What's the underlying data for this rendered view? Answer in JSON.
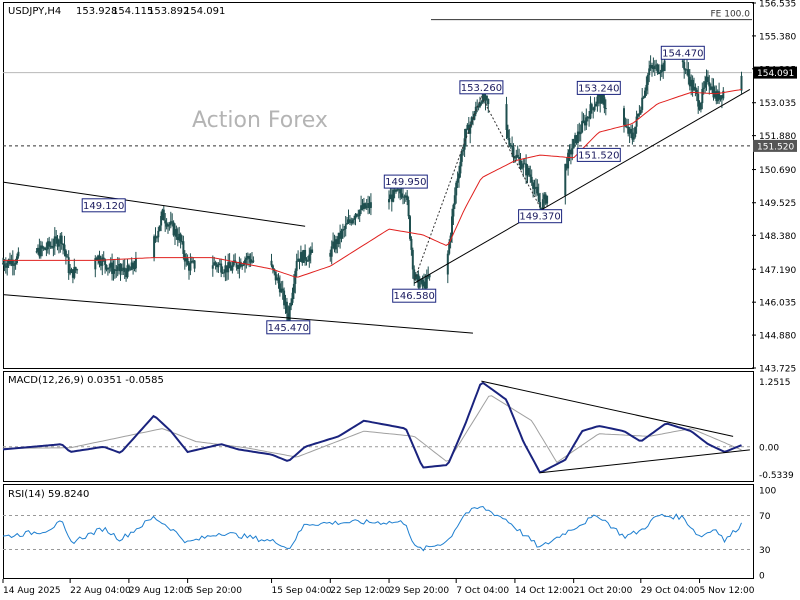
{
  "chart_data": {
    "type": "candlestick",
    "symbol_label": "USDJPY,H4",
    "ohlc_readout": [
      "153.928",
      "154.115",
      "153.892",
      "154.091"
    ],
    "watermark": "Action Forex",
    "colors": {
      "candle": "#1f4f4f",
      "ma": "#e0201e",
      "macd": "#1a237e",
      "signal": "#a0a0a0",
      "rsi": "#1e7fd0",
      "label_border": "#1a237e",
      "price_badge_bg": "#000000",
      "level_badge_bg": "#555555"
    },
    "main": {
      "ylim": [
        143.725,
        156.535
      ],
      "y_ticks": [
        "156.535",
        "155.380",
        "154.225",
        "153.035",
        "151.880",
        "150.690",
        "149.525",
        "148.380",
        "147.190",
        "146.035",
        "144.880",
        "143.725"
      ],
      "current_price": "154.091",
      "support_level": "151.520",
      "fe_level": {
        "label": "FE 100.0",
        "value": 155.95
      },
      "swing_labels": [
        {
          "text": "149.120",
          "date": "2025-08-26",
          "price": 149.12,
          "pos": "above"
        },
        {
          "text": "145.470",
          "date": "2025-09-17",
          "price": 145.47,
          "pos": "below"
        },
        {
          "text": "149.950",
          "date": "2025-10-01",
          "price": 149.95,
          "pos": "above"
        },
        {
          "text": "146.580",
          "date": "2025-10-02",
          "price": 146.58,
          "pos": "below"
        },
        {
          "text": "153.260",
          "date": "2025-10-10",
          "price": 153.26,
          "pos": "above"
        },
        {
          "text": "149.370",
          "date": "2025-10-17",
          "price": 149.37,
          "pos": "below"
        },
        {
          "text": "153.240",
          "date": "2025-10-24",
          "price": 153.24,
          "pos": "above"
        },
        {
          "text": "151.520",
          "date": "2025-10-24",
          "price": 151.52,
          "pos": "below"
        },
        {
          "text": "154.470",
          "date": "2025-11-03",
          "price": 154.47,
          "pos": "above"
        }
      ],
      "path": [
        [
          "2025-08-14",
          147.4
        ],
        [
          "2025-08-19",
          147.9
        ],
        [
          "2025-08-21",
          148.3
        ],
        [
          "2025-08-22",
          147.0
        ],
        [
          "2025-08-25",
          147.7
        ],
        [
          "2025-08-27",
          147.2
        ],
        [
          "2025-08-29",
          147.1
        ],
        [
          "2025-09-01",
          148.2
        ],
        [
          "2025-09-02",
          149.1
        ],
        [
          "2025-09-04",
          148.3
        ],
        [
          "2025-09-05",
          147.3
        ],
        [
          "2025-09-08",
          147.4
        ],
        [
          "2025-09-10",
          147.2
        ],
        [
          "2025-09-12",
          147.6
        ],
        [
          "2025-09-15",
          147.2
        ],
        [
          "2025-09-16",
          146.6
        ],
        [
          "2025-09-17",
          145.5
        ],
        [
          "2025-09-18",
          147.6
        ],
        [
          "2025-09-22",
          147.8
        ],
        [
          "2025-09-25",
          149.2
        ],
        [
          "2025-10-01",
          149.95
        ],
        [
          "2025-10-02",
          146.9
        ],
        [
          "2025-10-03",
          146.58
        ],
        [
          "2025-10-06",
          147.7
        ],
        [
          "2025-10-07",
          150.2
        ],
        [
          "2025-10-08",
          151.8
        ],
        [
          "2025-10-10",
          153.26
        ],
        [
          "2025-10-13",
          152.0
        ],
        [
          "2025-10-14",
          151.2
        ],
        [
          "2025-10-16",
          150.4
        ],
        [
          "2025-10-17",
          149.37
        ],
        [
          "2025-10-20",
          150.8
        ],
        [
          "2025-10-21",
          151.6
        ],
        [
          "2025-10-23",
          152.8
        ],
        [
          "2025-10-24",
          153.24
        ],
        [
          "2025-10-27",
          152.2
        ],
        [
          "2025-10-28",
          151.8
        ],
        [
          "2025-10-29",
          153.0
        ],
        [
          "2025-10-30",
          154.2
        ],
        [
          "2025-11-03",
          154.47
        ],
        [
          "2025-11-04",
          153.7
        ],
        [
          "2025-11-05",
          153.0
        ],
        [
          "2025-11-06",
          153.9
        ],
        [
          "2025-11-07",
          153.2
        ],
        [
          "2025-11-10",
          154.09
        ]
      ],
      "ma_path": [
        [
          "2025-08-14",
          147.5
        ],
        [
          "2025-08-25",
          147.5
        ],
        [
          "2025-09-01",
          147.6
        ],
        [
          "2025-09-08",
          147.6
        ],
        [
          "2025-09-15",
          147.2
        ],
        [
          "2025-09-18",
          146.9
        ],
        [
          "2025-09-22",
          147.3
        ],
        [
          "2025-09-29",
          148.6
        ],
        [
          "2025-10-03",
          148.4
        ],
        [
          "2025-10-06",
          148.0
        ],
        [
          "2025-10-08",
          149.3
        ],
        [
          "2025-10-10",
          150.4
        ],
        [
          "2025-10-14",
          151.0
        ],
        [
          "2025-10-17",
          151.2
        ],
        [
          "2025-10-21",
          151.1
        ],
        [
          "2025-10-24",
          152.0
        ],
        [
          "2025-10-28",
          152.3
        ],
        [
          "2025-10-31",
          153.0
        ],
        [
          "2025-11-04",
          153.4
        ],
        [
          "2025-11-07",
          153.35
        ],
        [
          "2025-11-10",
          153.5
        ]
      ],
      "trendlines": [
        {
          "from": [
            "2025-08-14",
            150.25
          ],
          "to": [
            "2025-09-19",
            148.7
          ]
        },
        {
          "from": [
            "2025-08-14",
            146.3
          ],
          "to": [
            "2025-10-09",
            144.95
          ]
        },
        {
          "from": [
            "2025-10-02",
            146.7
          ],
          "to": [
            "2025-11-11",
            153.5
          ]
        }
      ],
      "dotted_lines": [
        [
          [
            "2025-10-02",
            146.8
          ],
          [
            "2025-10-10",
            153.26
          ]
        ],
        [
          [
            "2025-10-10",
            153.26
          ],
          [
            "2025-10-17",
            149.37
          ]
        ]
      ]
    },
    "macd": {
      "label": "MACD(12,26,9) 0.0351 -0.0585",
      "ylim": [
        -0.6,
        1.32
      ],
      "y_ticks": [
        "1.2515",
        "0.00",
        "-0.5339"
      ],
      "path": [
        [
          "2025-08-14",
          -0.05
        ],
        [
          "2025-08-19",
          0.02
        ],
        [
          "2025-08-21",
          0.05
        ],
        [
          "2025-08-22",
          -0.1
        ],
        [
          "2025-08-26",
          0.0
        ],
        [
          "2025-08-28",
          -0.12
        ],
        [
          "2025-09-01",
          0.6
        ],
        [
          "2025-09-03",
          0.3
        ],
        [
          "2025-09-05",
          -0.1
        ],
        [
          "2025-09-09",
          0.05
        ],
        [
          "2025-09-11",
          -0.05
        ],
        [
          "2025-09-15",
          -0.15
        ],
        [
          "2025-09-17",
          -0.28
        ],
        [
          "2025-09-19",
          0.0
        ],
        [
          "2025-09-23",
          0.2
        ],
        [
          "2025-09-26",
          0.5
        ],
        [
          "2025-10-01",
          0.35
        ],
        [
          "2025-10-03",
          -0.4
        ],
        [
          "2025-10-06",
          -0.35
        ],
        [
          "2025-10-08",
          0.4
        ],
        [
          "2025-10-10",
          1.25
        ],
        [
          "2025-10-13",
          0.9
        ],
        [
          "2025-10-15",
          0.1
        ],
        [
          "2025-10-17",
          -0.5
        ],
        [
          "2025-10-20",
          -0.25
        ],
        [
          "2025-10-22",
          0.3
        ],
        [
          "2025-10-24",
          0.4
        ],
        [
          "2025-10-27",
          0.3
        ],
        [
          "2025-10-29",
          0.1
        ],
        [
          "2025-11-01",
          0.45
        ],
        [
          "2025-11-04",
          0.3
        ],
        [
          "2025-11-06",
          0.05
        ],
        [
          "2025-11-08",
          -0.1
        ],
        [
          "2025-11-10",
          0.03
        ]
      ],
      "signal_path": [
        [
          "2025-08-14",
          -0.03
        ],
        [
          "2025-08-22",
          -0.02
        ],
        [
          "2025-09-02",
          0.35
        ],
        [
          "2025-09-06",
          0.1
        ],
        [
          "2025-09-12",
          -0.02
        ],
        [
          "2025-09-18",
          -0.2
        ],
        [
          "2025-09-26",
          0.3
        ],
        [
          "2025-10-02",
          0.2
        ],
        [
          "2025-10-06",
          -0.3
        ],
        [
          "2025-10-11",
          1.0
        ],
        [
          "2025-10-16",
          0.5
        ],
        [
          "2025-10-19",
          -0.3
        ],
        [
          "2025-10-24",
          0.25
        ],
        [
          "2025-10-30",
          0.2
        ],
        [
          "2025-11-04",
          0.35
        ],
        [
          "2025-11-10",
          -0.06
        ]
      ],
      "trendlines": [
        {
          "from": [
            "2025-10-10",
            1.26
          ],
          "to": [
            "2025-11-09",
            0.2
          ]
        },
        {
          "from": [
            "2025-10-17",
            -0.5
          ],
          "to": [
            "2025-11-11",
            -0.06
          ]
        }
      ]
    },
    "rsi": {
      "label": "RSI(14) 59.8240",
      "ylim": [
        0,
        100
      ],
      "y_ticks": [
        "100",
        "70",
        "30",
        "0"
      ],
      "path": [
        [
          "2025-08-14",
          45
        ],
        [
          "2025-08-19",
          52
        ],
        [
          "2025-08-21",
          62
        ],
        [
          "2025-08-22",
          38
        ],
        [
          "2025-08-26",
          55
        ],
        [
          "2025-08-28",
          42
        ],
        [
          "2025-09-01",
          68
        ],
        [
          "2025-09-03",
          55
        ],
        [
          "2025-09-05",
          38
        ],
        [
          "2025-09-09",
          50
        ],
        [
          "2025-09-12",
          45
        ],
        [
          "2025-09-16",
          38
        ],
        [
          "2025-09-17",
          30
        ],
        [
          "2025-09-19",
          60
        ],
        [
          "2025-09-24",
          62
        ],
        [
          "2025-10-01",
          62
        ],
        [
          "2025-10-02",
          33
        ],
        [
          "2025-10-03",
          30
        ],
        [
          "2025-10-06",
          40
        ],
        [
          "2025-10-08",
          72
        ],
        [
          "2025-10-10",
          80
        ],
        [
          "2025-10-13",
          65
        ],
        [
          "2025-10-15",
          48
        ],
        [
          "2025-10-17",
          32
        ],
        [
          "2025-10-20",
          50
        ],
        [
          "2025-10-23",
          66
        ],
        [
          "2025-10-24",
          70
        ],
        [
          "2025-10-27",
          45
        ],
        [
          "2025-10-29",
          52
        ],
        [
          "2025-10-31",
          70
        ],
        [
          "2025-11-03",
          68
        ],
        [
          "2025-11-05",
          45
        ],
        [
          "2025-11-07",
          55
        ],
        [
          "2025-11-08",
          40
        ],
        [
          "2025-11-10",
          60
        ]
      ]
    },
    "x_labels": [
      {
        "text": "14 Aug 2025",
        "date": "2025-08-14"
      },
      {
        "text": "22 Aug 04:00",
        "date": "2025-08-22"
      },
      {
        "text": "29 Aug 12:00",
        "date": "2025-08-29"
      },
      {
        "text": "5 Sep 20:00",
        "date": "2025-09-05"
      },
      {
        "text": "15 Sep 04:00",
        "date": "2025-09-15"
      },
      {
        "text": "22 Sep 12:00",
        "date": "2025-09-22"
      },
      {
        "text": "29 Sep 20:00",
        "date": "2025-09-29"
      },
      {
        "text": "7 Oct 04:00",
        "date": "2025-10-07"
      },
      {
        "text": "14 Oct 12:00",
        "date": "2025-10-14"
      },
      {
        "text": "21 Oct 20:00",
        "date": "2025-10-21"
      },
      {
        "text": "29 Oct 04:00",
        "date": "2025-10-29"
      },
      {
        "text": "5 Nov 12:00",
        "date": "2025-11-05"
      }
    ]
  }
}
